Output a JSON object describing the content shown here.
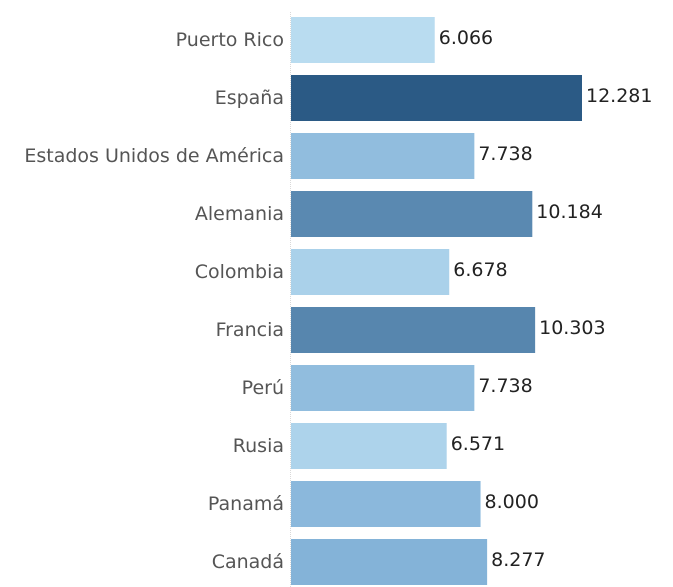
{
  "chart_data": {
    "type": "bar",
    "orientation": "horizontal",
    "categories": [
      "Puerto Rico",
      "España",
      "Estados Unidos de América",
      "Alemania",
      "Colombia",
      "Francia",
      "Perú",
      "Rusia",
      "Panamá",
      "Canadá"
    ],
    "values": [
      6.066,
      12.281,
      7.738,
      10.184,
      6.678,
      10.303,
      7.738,
      6.571,
      8.0,
      8.277
    ],
    "value_labels": [
      "6.066",
      "12.281",
      "7.738",
      "10.184",
      "6.678",
      "10.303",
      "7.738",
      "6.571",
      "8.000",
      "8.277"
    ],
    "xlim": [
      0,
      12.281
    ],
    "grid": false,
    "legend": "none",
    "color_scale": {
      "low": "#b9dcf0",
      "mid": "#85b4d9",
      "high": "#2b5a85"
    }
  }
}
